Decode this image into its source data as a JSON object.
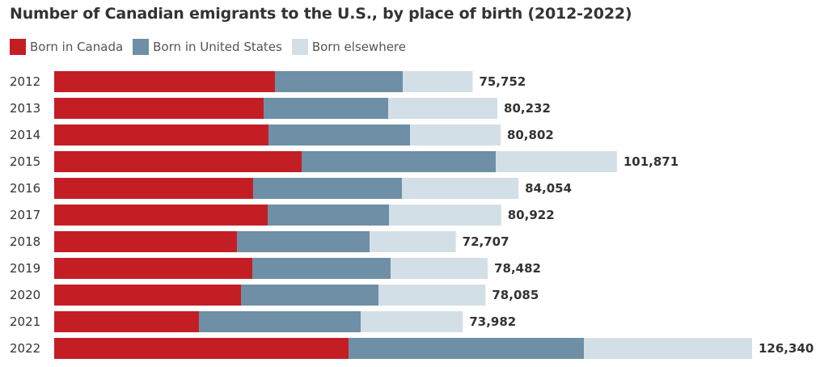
{
  "chart_data": {
    "type": "bar",
    "orientation": "horizontal",
    "stacked": true,
    "title": "Number of Canadian emigrants to the U.S., by place of birth (2012-2022)",
    "xlabel": "",
    "ylabel": "",
    "legend_position": "top-left",
    "grid": false,
    "categories": [
      "2012",
      "2013",
      "2014",
      "2015",
      "2016",
      "2017",
      "2018",
      "2019",
      "2020",
      "2021",
      "2022"
    ],
    "series": [
      {
        "name": "Born in Canada",
        "color": "#c41e25",
        "values": [
          39970,
          37920,
          38800,
          44800,
          36010,
          38650,
          33090,
          35870,
          33820,
          26210,
          53290
        ]
      },
      {
        "name": "Born in United States",
        "color": "#6e8fa5",
        "values": [
          23130,
          22550,
          25620,
          35140,
          26940,
          21960,
          24010,
          25030,
          24890,
          29280,
          42600
        ]
      },
      {
        "name": "Born elsewhere",
        "color": "#d3dfe6",
        "values": [
          12652,
          19762,
          16382,
          21931,
          21104,
          20312,
          15607,
          17582,
          19375,
          18492,
          30450
        ]
      }
    ],
    "totals": [
      75752,
      80232,
      80802,
      101871,
      84054,
      80922,
      72707,
      78482,
      78085,
      73982,
      126340
    ],
    "total_labels": [
      "75,752",
      "80,232",
      "80,802",
      "101,871",
      "84,054",
      "80,922",
      "72,707",
      "78,482",
      "78,085",
      "73,982",
      "126,340"
    ],
    "xlim": [
      0,
      126340
    ]
  }
}
